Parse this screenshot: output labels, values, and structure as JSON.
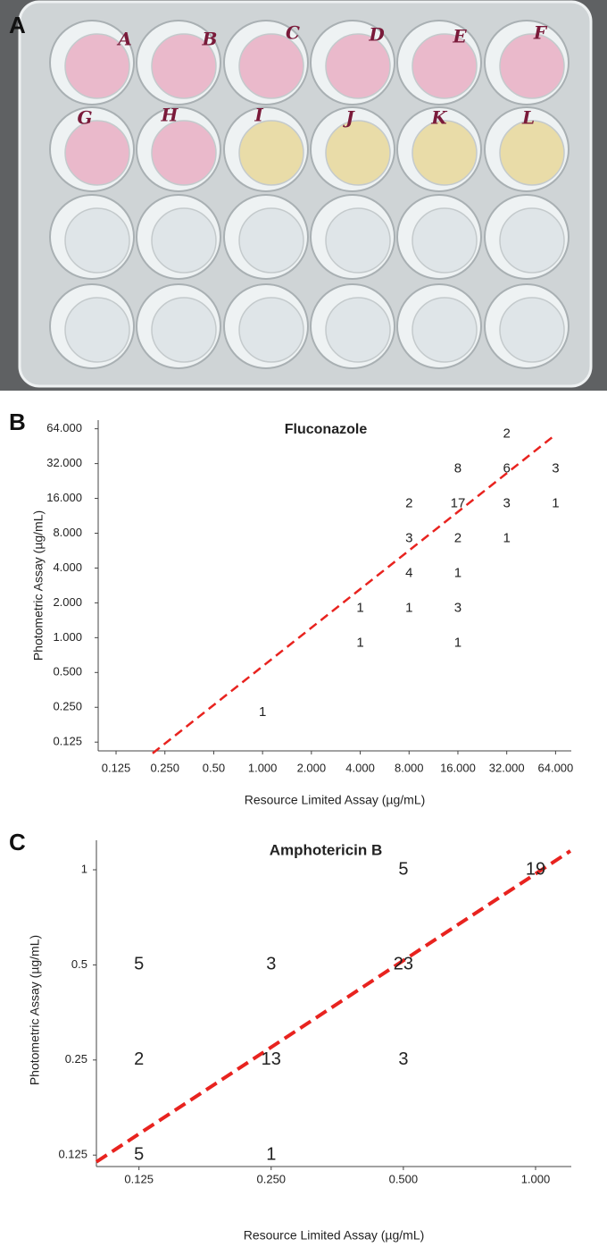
{
  "photo": {
    "panel_label": "A",
    "well_labels": [
      "A",
      "B",
      "C",
      "D",
      "E",
      "F",
      "G",
      "H",
      "I",
      "J",
      "K",
      "L"
    ]
  },
  "chart_data": [
    {
      "type": "scatter",
      "panel_label": "B",
      "title": "Fluconazole",
      "x_label": "Resource Limited Assay (µg/mL)",
      "y_label": "Photometric Assay (µg/mL)",
      "log_scale": true,
      "x": [
        1,
        4,
        4,
        8,
        8,
        8,
        8,
        16,
        16,
        16,
        16,
        16,
        16,
        32,
        32,
        32,
        32,
        64,
        64
      ],
      "y": [
        0.25,
        2,
        1,
        16,
        8,
        4,
        2,
        32,
        16,
        8,
        4,
        2,
        1,
        64,
        32,
        16,
        8,
        32,
        16
      ],
      "counts": [
        1,
        1,
        1,
        2,
        3,
        4,
        1,
        8,
        17,
        2,
        1,
        3,
        1,
        2,
        6,
        3,
        1,
        3,
        1
      ],
      "xlim": [
        0.097,
        80
      ],
      "ylim": [
        0.105,
        76
      ],
      "xticks": [
        0.125,
        {
          "value": 0.25,
          "label": "0.250"
        },
        {
          "value": 0.5,
          "label": "0.50"
        },
        {
          "value": 1,
          "label": "1.000"
        },
        {
          "value": 2,
          "label": "2.000"
        },
        {
          "value": 4,
          "label": "4.000"
        },
        {
          "value": 8,
          "label": "8.000"
        },
        {
          "value": 16,
          "label": "16.000"
        },
        {
          "value": 32,
          "label": "32.000"
        },
        {
          "value": 64,
          "label": "64.000"
        }
      ],
      "yticks": [
        0.125,
        {
          "value": 0.25,
          "label": "0.250"
        },
        {
          "value": 0.5,
          "label": "0.500"
        },
        {
          "value": 1,
          "label": "1.000"
        },
        {
          "value": 2,
          "label": "2.000"
        },
        {
          "value": 4,
          "label": "4.000"
        },
        {
          "value": 8,
          "label": "8.000"
        },
        {
          "value": 16,
          "label": "16.000"
        },
        {
          "value": 32,
          "label": "32.000"
        },
        {
          "value": 64,
          "label": "64.000"
        }
      ],
      "reference_line": {
        "x": [
          0.21,
          63
        ],
        "y": [
          0.1,
          56
        ],
        "color": "#e8231f"
      }
    },
    {
      "type": "scatter",
      "panel_label": "C",
      "title": "Amphotericin B",
      "x_label": "Resource Limited Assay (µg/mL)",
      "y_label": "Photometric Assay (µg/mL)",
      "log_scale": true,
      "x": [
        0.125,
        0.125,
        0.125,
        0.25,
        0.25,
        0.25,
        0.5,
        0.5,
        0.5,
        1
      ],
      "y": [
        0.5,
        0.25,
        0.125,
        0.5,
        0.25,
        0.125,
        1,
        0.5,
        0.25,
        1
      ],
      "counts": [
        5,
        2,
        5,
        3,
        13,
        1,
        5,
        23,
        3,
        19
      ],
      "xlim": [
        0.1,
        1.206
      ],
      "ylim": [
        0.115,
        1.24
      ],
      "xticks": [
        0.125,
        {
          "value": 0.25,
          "label": "0.250"
        },
        {
          "value": 0.5,
          "label": "0.500"
        },
        {
          "value": 1,
          "label": "1.000"
        }
      ],
      "yticks": [
        0.125,
        0.25,
        0.5,
        1
      ],
      "reference_line": {
        "x": [
          0.1,
          1.2
        ],
        "y": [
          0.119,
          1.147
        ],
        "color": "#e8231f"
      }
    }
  ]
}
